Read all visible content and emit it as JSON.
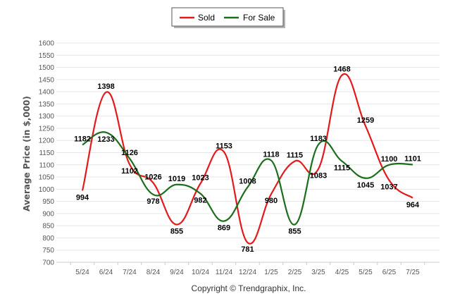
{
  "chart_data": {
    "type": "line",
    "categories": [
      "5/24",
      "6/24",
      "7/24",
      "8/24",
      "9/24",
      "10/24",
      "11/24",
      "12/24",
      "1/25",
      "2/25",
      "3/25",
      "4/25",
      "5/25",
      "6/25",
      "7/25"
    ],
    "series": [
      {
        "name": "Sold",
        "color": "#e31a1c",
        "values": [
          994,
          1398,
          1102,
          1026,
          855,
          1023,
          1153,
          781,
          980,
          1115,
          1083,
          1468,
          1259,
          1037,
          964
        ]
      },
      {
        "name": "For Sale",
        "color": "#1b6e1b",
        "values": [
          1182,
          1233,
          1126,
          978,
          1019,
          982,
          869,
          1008,
          1118,
          855,
          1183,
          1115,
          1045,
          1100,
          1101
        ]
      }
    ],
    "ylabel": "Average Price (in $,000)",
    "xlabel": "",
    "ylim": [
      700,
      1600
    ],
    "yticks": [
      700,
      750,
      800,
      850,
      900,
      950,
      1000,
      1050,
      1100,
      1150,
      1200,
      1250,
      1300,
      1350,
      1400,
      1450,
      1500,
      1550,
      1600
    ],
    "grid": true,
    "legend": "top-center"
  },
  "credit": "Copyright © Trendgraphix, Inc."
}
